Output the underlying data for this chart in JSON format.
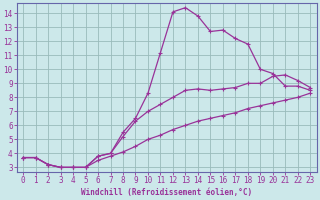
{
  "xlabel": "Windchill (Refroidissement éolien,°C)",
  "bg_color": "#cce8ea",
  "line_color": "#993399",
  "grid_color": "#99bbbb",
  "spine_color": "#6666aa",
  "xlim": [
    -0.5,
    23.5
  ],
  "ylim": [
    2.7,
    14.7
  ],
  "xticks": [
    0,
    1,
    2,
    3,
    4,
    5,
    6,
    7,
    8,
    9,
    10,
    11,
    12,
    13,
    14,
    15,
    16,
    17,
    18,
    19,
    20,
    21,
    22,
    23
  ],
  "yticks": [
    3,
    4,
    5,
    6,
    7,
    8,
    9,
    10,
    11,
    12,
    13,
    14
  ],
  "line2_x": [
    0,
    1,
    2,
    3,
    4,
    5,
    6,
    7,
    8,
    9,
    10,
    11,
    12,
    13,
    14,
    15,
    16,
    17,
    18,
    19,
    20,
    21,
    22,
    23
  ],
  "line2_y": [
    3.7,
    3.7,
    3.2,
    3.0,
    3.0,
    3.0,
    3.8,
    4.0,
    5.5,
    6.5,
    8.3,
    11.2,
    14.1,
    14.4,
    13.8,
    12.7,
    12.8,
    12.2,
    11.8,
    10.0,
    9.7,
    8.8,
    8.8,
    8.5
  ],
  "line3_x": [
    0,
    1,
    2,
    3,
    4,
    5,
    6,
    7,
    8,
    9,
    10,
    11,
    12,
    13,
    14,
    15,
    16,
    17,
    18,
    19,
    20,
    21,
    22,
    23
  ],
  "line3_y": [
    3.7,
    3.7,
    3.2,
    3.0,
    3.0,
    3.0,
    3.8,
    4.0,
    5.2,
    6.3,
    7.0,
    7.5,
    8.0,
    8.5,
    8.6,
    8.5,
    8.6,
    8.7,
    9.0,
    9.0,
    9.5,
    9.6,
    9.2,
    8.7
  ],
  "line1_x": [
    0,
    1,
    2,
    3,
    4,
    5,
    6,
    7,
    8,
    9,
    10,
    11,
    12,
    13,
    14,
    15,
    16,
    17,
    18,
    19,
    20,
    21,
    22,
    23
  ],
  "line1_y": [
    3.7,
    3.7,
    3.2,
    3.0,
    3.0,
    3.0,
    3.5,
    3.8,
    4.1,
    4.5,
    5.0,
    5.3,
    5.7,
    6.0,
    6.3,
    6.5,
    6.7,
    6.9,
    7.2,
    7.4,
    7.6,
    7.8,
    8.0,
    8.3
  ]
}
